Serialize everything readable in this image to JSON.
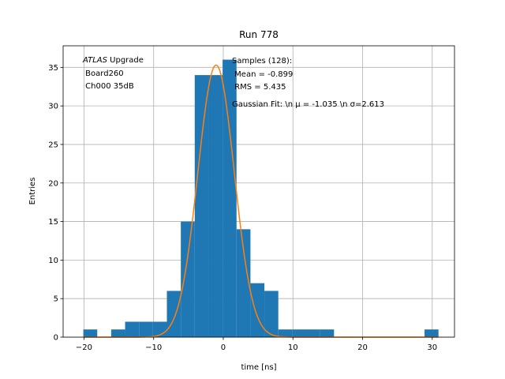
{
  "chart_data": {
    "type": "bar",
    "title": "Run 778",
    "xlabel": "time [ns]",
    "ylabel": "Entries",
    "xlim": [
      -23,
      33.2
    ],
    "ylim": [
      0,
      37.8
    ],
    "xticks": [
      -20,
      -10,
      0,
      10,
      20,
      30
    ],
    "yticks": [
      0,
      5,
      10,
      15,
      20,
      25,
      30,
      35
    ],
    "grid": true,
    "colors": {
      "hist": "#1f77b4",
      "fit": "#ff7f0e",
      "grid": "#b0b0b0"
    },
    "bin_width": 2.0,
    "bins": [
      {
        "left": -20.1,
        "count": 1
      },
      {
        "left": -16.1,
        "count": 1
      },
      {
        "left": -14.1,
        "count": 2
      },
      {
        "left": -12.1,
        "count": 2
      },
      {
        "left": -10.1,
        "count": 2
      },
      {
        "left": -8.1,
        "count": 6
      },
      {
        "left": -6.1,
        "count": 15
      },
      {
        "left": -4.1,
        "count": 34
      },
      {
        "left": -2.1,
        "count": 34
      },
      {
        "left": -0.1,
        "count": 36
      },
      {
        "left": 1.9,
        "count": 14
      },
      {
        "left": 3.9,
        "count": 7
      },
      {
        "left": 5.9,
        "count": 6
      },
      {
        "left": 7.9,
        "count": 1
      },
      {
        "left": 9.9,
        "count": 1
      },
      {
        "left": 11.9,
        "count": 1
      },
      {
        "left": 13.9,
        "count": 1
      },
      {
        "left": 28.9,
        "count": 1
      }
    ],
    "fit": {
      "type": "gaussian",
      "amplitude": 35.3,
      "mu": -1.035,
      "sigma": 2.613
    },
    "annotations": {
      "atlas_italic": "ATLAS",
      "atlas_rest": " Upgrade",
      "board": " Board260",
      "channel": " Ch000 35dB",
      "samples": "Samples (128):",
      "mean": " Mean = -0.899",
      "rms": " RMS = 5.435",
      "fit_label": "Gaussian Fit: \\n μ = -1.035 \\n σ=2.613"
    }
  }
}
